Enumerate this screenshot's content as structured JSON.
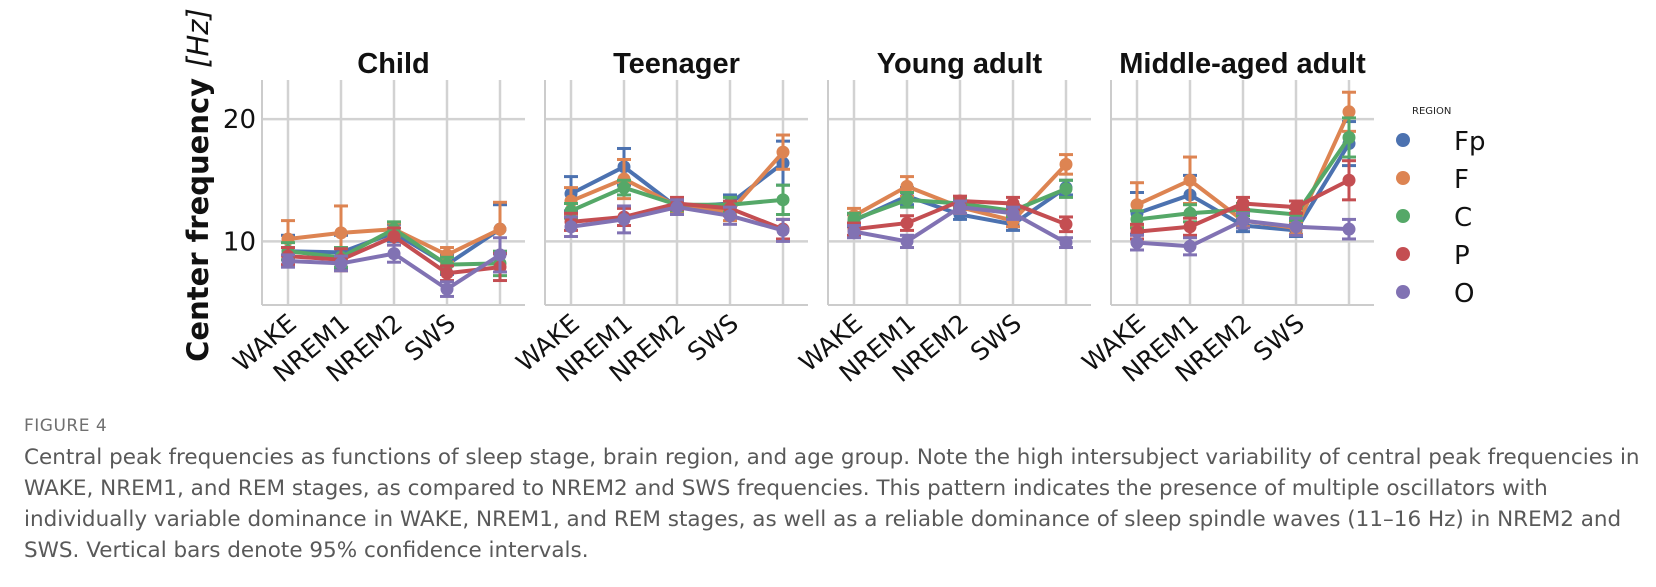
{
  "figure": {
    "label": "FIGURE 4",
    "caption": "Central peak frequencies as functions of sleep stage, brain region, and age group. Note the high intersubject variability of central peak frequencies in WAKE, NREM1, and REM stages, as compared to NREM2 and SWS frequencies. This pattern indicates the presence of multiple oscillators with individually variable dominance in WAKE, NREM1, and REM stages, as well as a reliable dominance of sleep spindle waves (11–16 Hz) in NREM2 and SWS. Vertical bars denote 95% confidence intervals."
  },
  "chart_data": {
    "type": "line",
    "ylabel": "Center frequency",
    "ylabel_unit": "[Hz]",
    "yticks": [
      10,
      20
    ],
    "ylim": [
      4.8,
      23.2
    ],
    "grid": true,
    "categories": [
      "WAKE",
      "NREM1",
      "NREM2",
      "SWS",
      ""
    ],
    "legend": {
      "title": "REGION",
      "placement": "right"
    },
    "colors": {
      "Fp": "#4c72b0",
      "F": "#dd8452",
      "C": "#55a868",
      "P": "#c44e52",
      "O": "#8172b3"
    },
    "panels": [
      {
        "title": "Child",
        "series": [
          {
            "name": "Fp",
            "values": [
              9.2,
              9.1,
              10.7,
              8.1,
              11.0
            ],
            "lo": [
              7.9,
              7.7,
              10.0,
              7.3,
              9.0
            ],
            "hi": [
              10.5,
              10.5,
              11.4,
              8.9,
              13.0
            ]
          },
          {
            "name": "F",
            "values": [
              10.2,
              10.7,
              11.0,
              8.9,
              11.0
            ],
            "lo": [
              8.8,
              8.5,
              10.5,
              8.3,
              9.1
            ],
            "hi": [
              11.7,
              12.9,
              11.5,
              9.5,
              13.2
            ]
          },
          {
            "name": "C",
            "values": [
              9.2,
              8.7,
              11.0,
              8.1,
              8.2
            ],
            "lo": [
              8.5,
              7.9,
              10.4,
              7.5,
              7.2
            ],
            "hi": [
              9.9,
              9.5,
              11.6,
              8.7,
              9.2
            ]
          },
          {
            "name": "P",
            "values": [
              8.8,
              8.5,
              10.4,
              7.4,
              7.9
            ],
            "lo": [
              8.1,
              7.6,
              9.7,
              6.8,
              6.8
            ],
            "hi": [
              9.5,
              9.4,
              11.1,
              8.0,
              9.0
            ]
          },
          {
            "name": "O",
            "values": [
              8.4,
              8.2,
              9.0,
              6.1,
              8.9
            ],
            "lo": [
              7.9,
              7.6,
              8.3,
              5.5,
              7.5
            ],
            "hi": [
              8.9,
              8.8,
              9.7,
              6.7,
              10.3
            ]
          }
        ]
      },
      {
        "title": "Teenager",
        "series": [
          {
            "name": "Fp",
            "values": [
              13.9,
              16.1,
              12.8,
              13.1,
              16.4
            ],
            "lo": [
              12.5,
              14.6,
              12.3,
              12.4,
              14.6
            ],
            "hi": [
              15.3,
              17.6,
              13.3,
              13.8,
              18.2
            ]
          },
          {
            "name": "F",
            "values": [
              13.3,
              15.1,
              12.9,
              12.4,
              17.3
            ],
            "lo": [
              12.2,
              13.5,
              12.4,
              11.7,
              15.9
            ],
            "hi": [
              14.4,
              16.7,
              13.4,
              13.1,
              18.7
            ]
          },
          {
            "name": "C",
            "values": [
              12.5,
              14.4,
              13.0,
              13.0,
              13.4
            ],
            "lo": [
              11.9,
              13.8,
              12.5,
              12.4,
              12.2
            ],
            "hi": [
              13.1,
              15.0,
              13.5,
              13.6,
              14.6
            ]
          },
          {
            "name": "P",
            "values": [
              11.6,
              12.0,
              13.1,
              12.7,
              11.0
            ],
            "lo": [
              10.9,
              11.3,
              12.6,
              12.1,
              10.2
            ],
            "hi": [
              12.3,
              12.7,
              13.6,
              13.3,
              11.8
            ]
          },
          {
            "name": "O",
            "values": [
              11.2,
              11.8,
              12.8,
              12.1,
              10.9
            ],
            "lo": [
              10.4,
              10.7,
              12.2,
              11.4,
              10.0
            ],
            "hi": [
              12.0,
              12.9,
              13.4,
              12.8,
              11.8
            ]
          }
        ]
      },
      {
        "title": "Young adult",
        "series": [
          {
            "name": "Fp",
            "values": [
              11.7,
              13.7,
              12.2,
              11.4,
              14.4
            ],
            "lo": [
              11.2,
              13.0,
              11.8,
              10.9,
              13.8
            ],
            "hi": [
              12.2,
              14.4,
              12.6,
              11.9,
              15.0
            ]
          },
          {
            "name": "F",
            "values": [
              12.1,
              14.5,
              12.8,
              11.7,
              16.3
            ],
            "lo": [
              11.5,
              13.7,
              12.3,
              11.2,
              15.5
            ],
            "hi": [
              12.7,
              15.3,
              13.3,
              12.2,
              17.1
            ]
          },
          {
            "name": "C",
            "values": [
              11.8,
              13.4,
              13.1,
              12.5,
              14.3
            ],
            "lo": [
              11.3,
              12.8,
              12.7,
              12.0,
              13.6
            ],
            "hi": [
              12.3,
              14.0,
              13.5,
              13.0,
              15.0
            ]
          },
          {
            "name": "P",
            "values": [
              11.0,
              11.5,
              13.3,
              13.1,
              11.4
            ],
            "lo": [
              10.5,
              10.9,
              12.9,
              12.6,
              10.8
            ],
            "hi": [
              11.5,
              12.1,
              13.7,
              13.6,
              12.0
            ]
          },
          {
            "name": "O",
            "values": [
              10.8,
              10.0,
              12.8,
              12.3,
              9.9
            ],
            "lo": [
              10.3,
              9.5,
              12.3,
              11.8,
              9.5
            ],
            "hi": [
              11.3,
              10.5,
              13.3,
              12.8,
              10.3
            ]
          }
        ]
      },
      {
        "title": "Middle-aged adult",
        "series": [
          {
            "name": "Fp",
            "values": [
              12.3,
              13.8,
              11.3,
              10.9,
              18.0
            ],
            "lo": [
              10.6,
              12.2,
              10.8,
              10.4,
              16.2
            ],
            "hi": [
              14.0,
              15.4,
              11.8,
              11.4,
              19.8
            ]
          },
          {
            "name": "F",
            "values": [
              13.0,
              15.0,
              11.7,
              11.1,
              20.6
            ],
            "lo": [
              11.2,
              13.1,
              11.2,
              10.6,
              19.0
            ],
            "hi": [
              14.8,
              16.9,
              12.2,
              11.6,
              22.2
            ]
          },
          {
            "name": "C",
            "values": [
              11.8,
              12.3,
              12.6,
              12.2,
              18.5
            ],
            "lo": [
              11.1,
              11.6,
              12.1,
              11.7,
              16.9
            ],
            "hi": [
              12.5,
              13.0,
              13.1,
              12.7,
              20.1
            ]
          },
          {
            "name": "P",
            "values": [
              10.8,
              11.2,
              13.1,
              12.8,
              15.0
            ],
            "lo": [
              10.2,
              10.5,
              12.6,
              12.3,
              13.4
            ],
            "hi": [
              11.4,
              11.9,
              13.6,
              13.3,
              16.6
            ]
          },
          {
            "name": "O",
            "values": [
              9.9,
              9.6,
              11.7,
              11.2,
              11.0
            ],
            "lo": [
              9.3,
              8.9,
              11.1,
              10.5,
              10.2
            ],
            "hi": [
              10.5,
              10.3,
              12.3,
              11.9,
              11.8
            ]
          }
        ]
      }
    ]
  }
}
